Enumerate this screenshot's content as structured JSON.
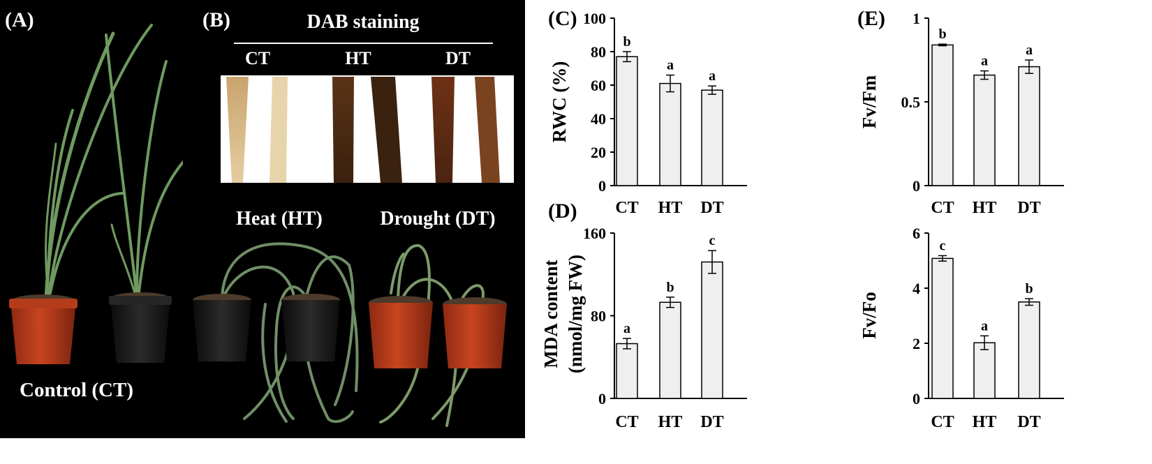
{
  "photo_panels": {
    "a": {
      "label": "(A)",
      "caption": "Control (CT)"
    },
    "b": {
      "label": "(B)",
      "stain_title": "DAB staining",
      "stain_groups": [
        "CT",
        "HT",
        "DT"
      ],
      "heat_caption": "Heat (HT)",
      "drought_caption": "Drought (DT)"
    }
  },
  "colors": {
    "photo_background": "#000000",
    "bar_fill": "#efefef",
    "bar_stroke": "#000000",
    "pot_red": "#b83a1c",
    "pot_black": "#1c1c1c",
    "leaf_green": "#6f9a60",
    "stain_light": "#d7b889",
    "stain_dark": "#3d200e"
  },
  "chart_data": [
    {
      "panel_label": "(C)",
      "type": "bar",
      "categories": [
        "CT",
        "HT",
        "DT"
      ],
      "values": [
        77,
        61,
        57
      ],
      "errors": [
        3,
        5,
        2.5
      ],
      "significance": [
        "b",
        "a",
        "a"
      ],
      "ylabel": "RWC (%)",
      "ylim": [
        0,
        100
      ],
      "yticks": [
        0,
        20,
        40,
        60,
        80,
        100
      ],
      "ytick_labels": [
        "0",
        "20",
        "40",
        "60",
        "80",
        "100"
      ]
    },
    {
      "panel_label": "(D)",
      "type": "bar",
      "categories": [
        "CT",
        "HT",
        "DT"
      ],
      "values": [
        53,
        93,
        132
      ],
      "errors": [
        5,
        5,
        11
      ],
      "significance": [
        "a",
        "b",
        "c"
      ],
      "ylabel": "MDA content",
      "ylabel2": "(nmol/mg FW)",
      "ylim": [
        0,
        160
      ],
      "yticks": [
        0,
        80,
        160
      ],
      "ytick_labels": [
        "0",
        "80",
        "160"
      ]
    },
    {
      "panel_label": "(E)",
      "type": "bar",
      "categories": [
        "CT",
        "HT",
        "DT"
      ],
      "values": [
        0.84,
        0.66,
        0.71
      ],
      "errors": [
        0.005,
        0.025,
        0.04
      ],
      "significance": [
        "b",
        "a",
        "a"
      ],
      "ylabel": "Fv/Fm",
      "ylim": [
        0,
        1
      ],
      "yticks": [
        0,
        0.5,
        1
      ],
      "ytick_labels": [
        "0",
        "0.5",
        "1"
      ]
    },
    {
      "panel_label": "",
      "type": "bar",
      "categories": [
        "CT",
        "HT",
        "DT"
      ],
      "values": [
        5.08,
        2.02,
        3.5
      ],
      "errors": [
        0.1,
        0.25,
        0.12
      ],
      "significance": [
        "c",
        "a",
        "b"
      ],
      "ylabel": "Fv/Fo",
      "ylim": [
        0,
        6
      ],
      "yticks": [
        0,
        2,
        4,
        6
      ],
      "ytick_labels": [
        "0",
        "2",
        "4",
        "6"
      ]
    }
  ]
}
